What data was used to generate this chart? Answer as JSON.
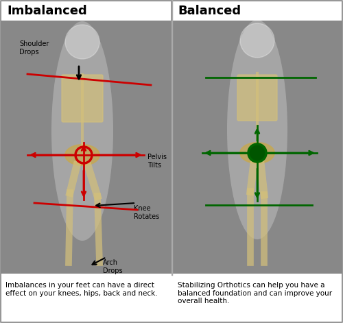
{
  "bg_color": "#888888",
  "border_color": "#cccccc",
  "panel_bg": "#888888",
  "title_left": "Imbalanced",
  "title_right": "Balanced",
  "title_bg": "#ffffff",
  "title_color": "#000000",
  "caption_left": "Imbalances in your feet can have a direct\neffect on your knees, hips, back and neck.",
  "caption_right": "Stabilizing Orthotics can help you have a\nbalanced foundation and can improve your\noverall health.",
  "caption_bg": "#ffffff",
  "caption_color": "#000000",
  "imbalanced_line_color": "#cc0000",
  "balanced_line_color": "#006600",
  "annotation_color": "#000000",
  "shoulder_label": "Shoulder\nDrops",
  "pelvis_label": "Pelvis\nTilts",
  "knee_label": "Knee\nRotates",
  "arch_label": "Arch\nDrops",
  "fig_width": 5.0,
  "fig_height": 4.71,
  "dpi": 100
}
